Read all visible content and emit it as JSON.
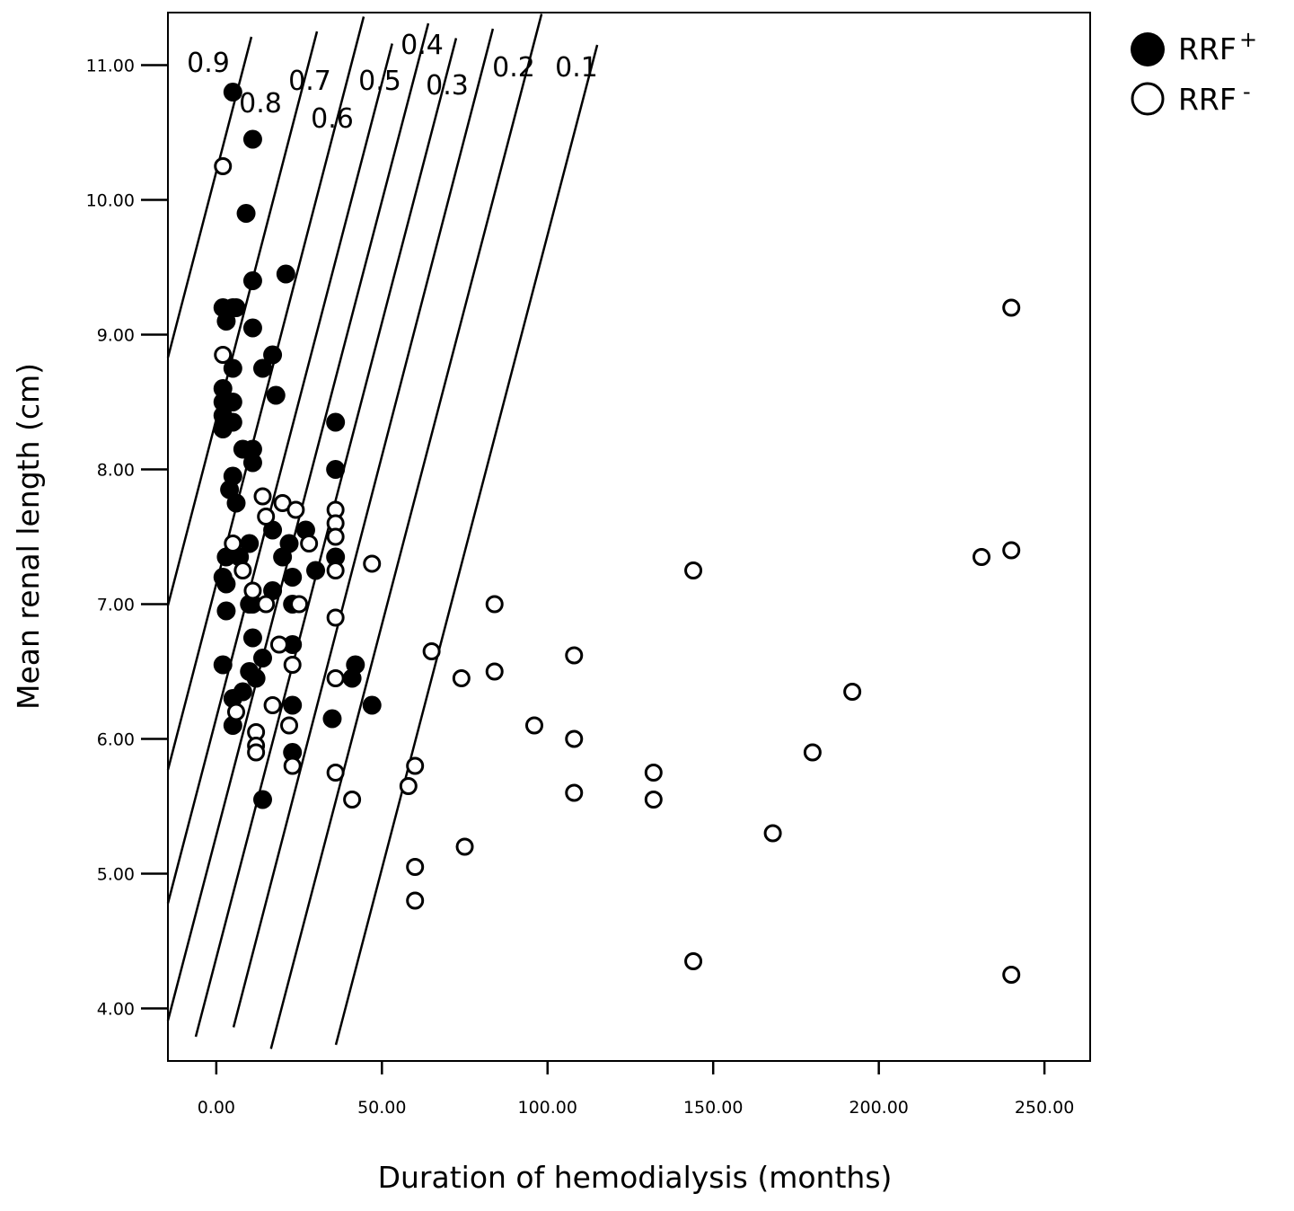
{
  "chart_data": {
    "type": "scatter",
    "title": "",
    "xlabel": "Duration of hemodialysis (months)",
    "ylabel": "Mean renal length (cm)",
    "xlim": [
      -14.6,
      263.8
    ],
    "ylim": [
      3.61,
      11.39
    ],
    "x_ticks": [
      "0.00",
      "50.00",
      "100.00",
      "150.00",
      "200.00",
      "250.00"
    ],
    "y_ticks": [
      "4.00",
      "5.00",
      "6.00",
      "7.00",
      "8.00",
      "9.00",
      "10.00",
      "11.00"
    ],
    "grid": false,
    "legend_position": "top-right, outside plot",
    "series": [
      {
        "legend": {
          "label": "RRF",
          "sup": "+"
        },
        "marker": "filled-circle",
        "color": "#000000",
        "points": [
          [
            5,
            10.8
          ],
          [
            11,
            10.45
          ],
          [
            9,
            9.9
          ],
          [
            21,
            9.45
          ],
          [
            11,
            9.4
          ],
          [
            2,
            9.2
          ],
          [
            5,
            9.2
          ],
          [
            6,
            9.2
          ],
          [
            3,
            9.1
          ],
          [
            11,
            9.05
          ],
          [
            17,
            8.85
          ],
          [
            5,
            8.75
          ],
          [
            14,
            8.75
          ],
          [
            18,
            8.55
          ],
          [
            2,
            8.6
          ],
          [
            2,
            8.5
          ],
          [
            5,
            8.5
          ],
          [
            2,
            8.4
          ],
          [
            5,
            8.35
          ],
          [
            36,
            8.35
          ],
          [
            2,
            8.3
          ],
          [
            8,
            8.15
          ],
          [
            11,
            8.15
          ],
          [
            11,
            8.05
          ],
          [
            5,
            7.95
          ],
          [
            36,
            8.0
          ],
          [
            4,
            7.85
          ],
          [
            6,
            7.75
          ],
          [
            17,
            7.55
          ],
          [
            27,
            7.55
          ],
          [
            10,
            7.45
          ],
          [
            22,
            7.45
          ],
          [
            3,
            7.35
          ],
          [
            7,
            7.35
          ],
          [
            36,
            7.35
          ],
          [
            20,
            7.35
          ],
          [
            2,
            7.2
          ],
          [
            3,
            7.15
          ],
          [
            30,
            7.25
          ],
          [
            23,
            7.2
          ],
          [
            17,
            7.1
          ],
          [
            11,
            7.0
          ],
          [
            10,
            7.0
          ],
          [
            23,
            7.0
          ],
          [
            3,
            6.95
          ],
          [
            11,
            6.75
          ],
          [
            23,
            6.7
          ],
          [
            2,
            6.55
          ],
          [
            14,
            6.6
          ],
          [
            10,
            6.5
          ],
          [
            12,
            6.45
          ],
          [
            42,
            6.55
          ],
          [
            41,
            6.45
          ],
          [
            8,
            6.35
          ],
          [
            5,
            6.3
          ],
          [
            47,
            6.25
          ],
          [
            23,
            6.25
          ],
          [
            35,
            6.15
          ],
          [
            5,
            6.1
          ],
          [
            23,
            5.9
          ],
          [
            14,
            5.55
          ]
        ]
      },
      {
        "legend": {
          "label": "RRF",
          "sup": "-"
        },
        "marker": "open-circle",
        "color": "#000000",
        "points": [
          [
            2,
            10.25
          ],
          [
            2,
            8.85
          ],
          [
            5,
            7.45
          ],
          [
            8,
            7.25
          ],
          [
            14,
            7.8
          ],
          [
            15,
            7.65
          ],
          [
            20,
            7.75
          ],
          [
            24,
            7.7
          ],
          [
            28,
            7.45
          ],
          [
            36,
            7.7
          ],
          [
            36,
            7.6
          ],
          [
            36,
            7.5
          ],
          [
            36,
            7.25
          ],
          [
            36,
            6.9
          ],
          [
            11,
            7.1
          ],
          [
            15,
            7.0
          ],
          [
            19,
            6.7
          ],
          [
            25,
            7.0
          ],
          [
            23,
            6.55
          ],
          [
            36,
            6.45
          ],
          [
            47,
            7.3
          ],
          [
            6,
            6.2
          ],
          [
            12,
            6.05
          ],
          [
            12,
            5.95
          ],
          [
            12,
            5.9
          ],
          [
            17,
            6.25
          ],
          [
            22,
            6.1
          ],
          [
            23,
            5.8
          ],
          [
            36,
            5.75
          ],
          [
            41,
            5.55
          ],
          [
            58,
            5.65
          ],
          [
            60,
            5.8
          ],
          [
            60,
            5.05
          ],
          [
            60,
            4.8
          ],
          [
            65,
            6.65
          ],
          [
            74,
            6.45
          ],
          [
            75,
            5.2
          ],
          [
            84,
            7.0
          ],
          [
            84,
            6.5
          ],
          [
            96,
            6.1
          ],
          [
            108,
            6.62
          ],
          [
            108,
            6.0
          ],
          [
            108,
            5.6
          ],
          [
            132,
            5.75
          ],
          [
            132,
            5.55
          ],
          [
            144,
            7.25
          ],
          [
            144,
            4.35
          ],
          [
            168,
            5.3
          ],
          [
            180,
            5.9
          ],
          [
            192,
            6.35
          ],
          [
            231,
            7.35
          ],
          [
            240,
            7.4
          ],
          [
            240,
            9.2
          ],
          [
            240,
            4.25
          ]
        ]
      }
    ],
    "contour_lines": [
      {
        "label": "0.9",
        "from": [
          -14.6,
          8.83
        ],
        "to": [
          10.6,
          11.21
        ]
      },
      {
        "label": "0.8",
        "from": [
          -14.6,
          6.99
        ],
        "to": [
          30.4,
          11.25
        ]
      },
      {
        "label": "0.7",
        "from": [
          -14.6,
          5.77
        ],
        "to": [
          44.5,
          11.36
        ]
      },
      {
        "label": "0.6",
        "from": [
          -14.6,
          4.78
        ],
        "to": [
          53.1,
          11.16
        ]
      },
      {
        "label": "0.5",
        "from": [
          -14.6,
          3.91
        ],
        "to": [
          64.0,
          11.31
        ]
      },
      {
        "label": "0.4",
        "from": [
          -6.2,
          3.79
        ],
        "to": [
          72.4,
          11.2
        ]
      },
      {
        "label": "0.3",
        "from": [
          5.2,
          3.86
        ],
        "to": [
          83.5,
          11.27
        ]
      },
      {
        "label": "0.2",
        "from": [
          16.5,
          3.7
        ],
        "to": [
          98.2,
          11.38
        ]
      },
      {
        "label": "0.1",
        "from": [
          36.1,
          3.73
        ],
        "to": [
          115.0,
          11.15
        ]
      }
    ]
  }
}
